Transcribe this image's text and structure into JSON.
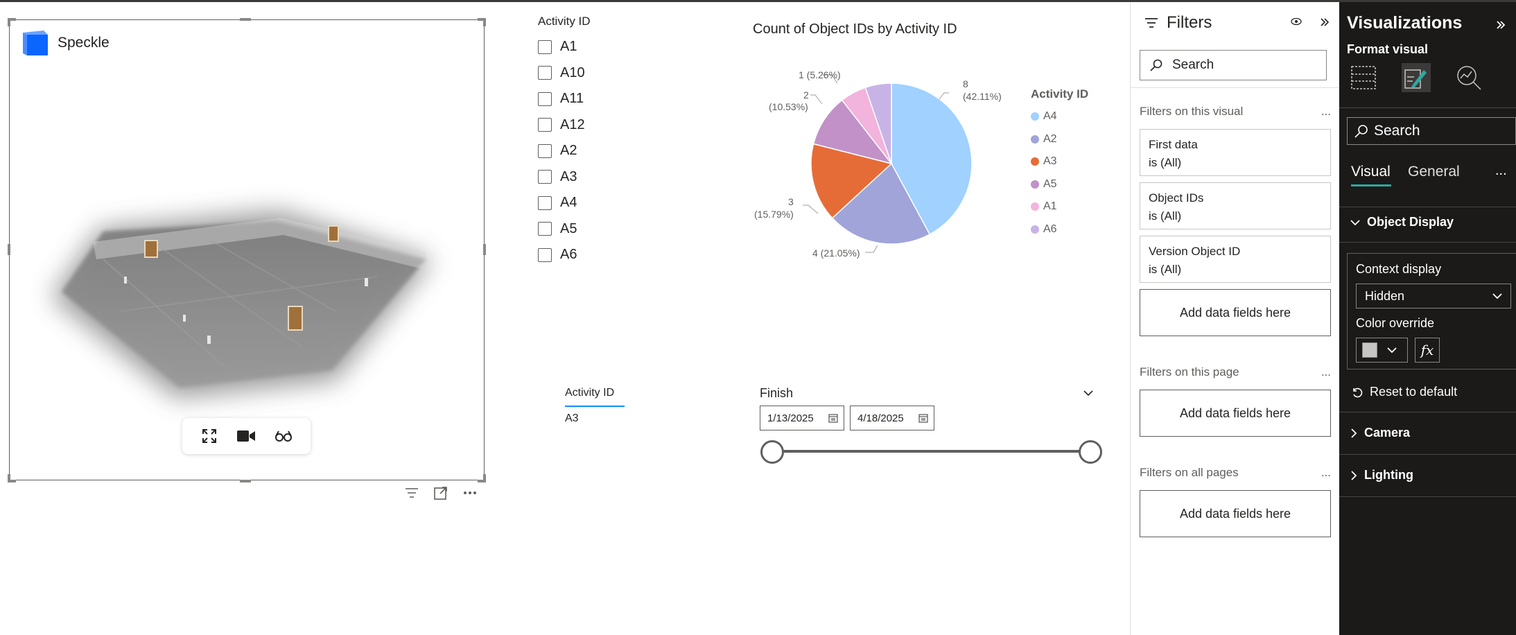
{
  "speckle": {
    "brand": "Speckle",
    "toolbar": {
      "icons": [
        "expand-icon",
        "camera-icon",
        "glasses-icon"
      ]
    },
    "header_icons": [
      "filter-icon",
      "focus-mode-icon",
      "more-options-icon"
    ]
  },
  "slicer": {
    "title": "Activity ID",
    "items": [
      "A1",
      "A10",
      "A11",
      "A12",
      "A2",
      "A3",
      "A4",
      "A5",
      "A6"
    ]
  },
  "pie": {
    "title": "Count of Object IDs by Activity ID",
    "legend_title": "Activity ID",
    "labels": {
      "a4_value": "8",
      "a4_pct": "(42.11%)",
      "a2": "4 (21.05%)",
      "a3_value": "3",
      "a3_pct": "(15.79%)",
      "a5_value": "2",
      "a5_pct": "(10.53%)",
      "a1": "1 (5.26%)"
    }
  },
  "chart_data": {
    "type": "pie",
    "title": "Count of Object IDs by Activity ID",
    "legend_title": "Activity ID",
    "categories": [
      "A4",
      "A2",
      "A3",
      "A5",
      "A1",
      "A6"
    ],
    "values": [
      8,
      4,
      3,
      2,
      1,
      1
    ],
    "percentages": [
      42.11,
      21.05,
      15.79,
      10.53,
      5.26,
      5.26
    ],
    "colors": [
      "#a0d1ff",
      "#a0a4d9",
      "#e66c37",
      "#c191c8",
      "#f2b3dd",
      "#c8b3e6"
    ],
    "legend_position": "right"
  },
  "table": {
    "header": "Activity ID",
    "rows": [
      "A3"
    ]
  },
  "date_slicer": {
    "title": "Finish",
    "start": "1/13/2025",
    "end": "4/18/2025"
  },
  "filters": {
    "title": "Filters",
    "search_placeholder": "Search",
    "on_visual": "Filters on this visual",
    "cards": [
      {
        "name": "First data",
        "state": "is (All)"
      },
      {
        "name": "Object IDs",
        "state": "is (All)"
      },
      {
        "name": "Version Object ID",
        "state": "is (All)"
      }
    ],
    "add_fields": "Add data fields here",
    "on_page": "Filters on this page",
    "on_all_pages": "Filters on all pages",
    "more": "..."
  },
  "viz": {
    "title": "Visualizations",
    "subtitle": "Format visual",
    "search": "Search",
    "tab_visual": "Visual",
    "tab_general": "General",
    "more": "...",
    "object_display": "Object Display",
    "context_display_label": "Context display",
    "context_display_value": "Hidden",
    "color_override_label": "Color override",
    "color_override_value": "#c8c6c4",
    "reset": "Reset to default",
    "camera": "Camera",
    "lighting": "Lighting"
  }
}
